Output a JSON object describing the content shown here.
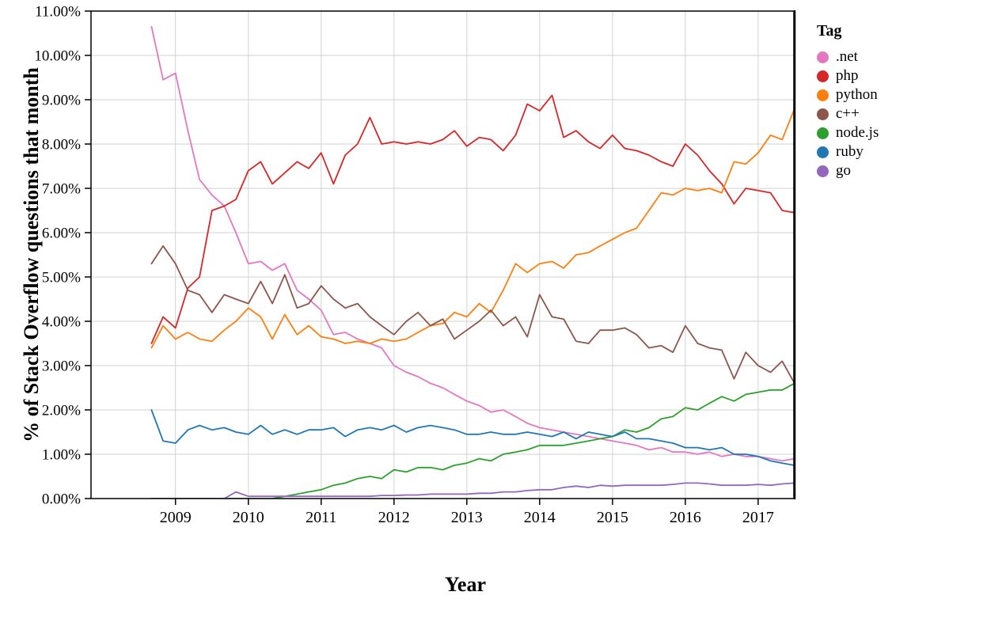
{
  "figure": {
    "y_axis_title": "% of Stack Overflow questions that month",
    "x_axis_title": "Year",
    "legend_title": "Tag"
  },
  "chart_data": {
    "type": "line",
    "title": "",
    "xlabel": "Year",
    "ylabel": "% of Stack Overflow questions that month",
    "legend_title": "Tag",
    "legend_position": "right",
    "grid": true,
    "grid_color": "#d2d2d2",
    "x_range": [
      2007.84,
      2017.49
    ],
    "y_range": [
      0,
      11
    ],
    "x_ticks": [
      2009,
      2010,
      2011,
      2012,
      2013,
      2014,
      2015,
      2016,
      2017
    ],
    "x_tick_labels": [
      "2009",
      "2010",
      "2011",
      "2012",
      "2013",
      "2014",
      "2015",
      "2016",
      "2017"
    ],
    "y_ticks": [
      0,
      1,
      2,
      3,
      4,
      5,
      6,
      7,
      8,
      9,
      10,
      11
    ],
    "y_tick_labels": [
      "0.00%",
      "1.00%",
      "2.00%",
      "3.00%",
      "4.00%",
      "5.00%",
      "6.00%",
      "7.00%",
      "8.00%",
      "9.00%",
      "10.00%",
      "11.00%"
    ],
    "x": [
      2008.67,
      2008.83,
      2009.0,
      2009.17,
      2009.33,
      2009.5,
      2009.67,
      2009.83,
      2010.0,
      2010.17,
      2010.33,
      2010.5,
      2010.67,
      2010.83,
      2011.0,
      2011.17,
      2011.33,
      2011.5,
      2011.67,
      2011.83,
      2012.0,
      2012.17,
      2012.33,
      2012.5,
      2012.67,
      2012.83,
      2013.0,
      2013.17,
      2013.33,
      2013.5,
      2013.67,
      2013.83,
      2014.0,
      2014.17,
      2014.33,
      2014.5,
      2014.67,
      2014.83,
      2015.0,
      2015.17,
      2015.33,
      2015.5,
      2015.67,
      2015.83,
      2016.0,
      2016.17,
      2016.33,
      2016.5,
      2016.67,
      2016.83,
      2017.0,
      2017.17,
      2017.33,
      2017.5
    ],
    "series": [
      {
        "name": ".net",
        "color": "#e377c2",
        "values": [
          10.65,
          9.45,
          9.6,
          8.3,
          7.2,
          6.85,
          6.6,
          6.0,
          5.3,
          5.35,
          5.15,
          5.3,
          4.7,
          4.5,
          4.25,
          3.7,
          3.75,
          3.6,
          3.5,
          3.4,
          3.0,
          2.85,
          2.75,
          2.6,
          2.5,
          2.35,
          2.2,
          2.1,
          1.95,
          2.0,
          1.85,
          1.7,
          1.6,
          1.55,
          1.5,
          1.45,
          1.4,
          1.35,
          1.3,
          1.25,
          1.2,
          1.1,
          1.15,
          1.05,
          1.05,
          1.0,
          1.05,
          0.95,
          1.0,
          0.95,
          0.95,
          0.9,
          0.85,
          0.9
        ]
      },
      {
        "name": "php",
        "color": "#d62728",
        "values": [
          3.5,
          4.1,
          3.85,
          4.75,
          5.0,
          6.5,
          6.6,
          6.75,
          7.4,
          7.6,
          7.1,
          7.35,
          7.6,
          7.45,
          7.8,
          7.1,
          7.75,
          8.0,
          8.6,
          8.0,
          8.05,
          8.0,
          8.05,
          8.0,
          8.1,
          8.3,
          7.95,
          8.15,
          8.1,
          7.85,
          8.2,
          8.9,
          8.75,
          9.1,
          8.15,
          8.3,
          8.05,
          7.9,
          8.2,
          7.9,
          7.85,
          7.75,
          7.6,
          7.5,
          8.0,
          7.75,
          7.4,
          7.1,
          6.65,
          7.0,
          6.95,
          6.9,
          6.5,
          6.45
        ]
      },
      {
        "name": "python",
        "color": "#ff7f0e",
        "values": [
          3.4,
          3.9,
          3.6,
          3.75,
          3.6,
          3.55,
          3.8,
          4.0,
          4.3,
          4.1,
          3.6,
          4.15,
          3.7,
          3.9,
          3.65,
          3.6,
          3.5,
          3.55,
          3.5,
          3.6,
          3.55,
          3.6,
          3.75,
          3.9,
          3.95,
          4.2,
          4.1,
          4.4,
          4.2,
          4.7,
          5.3,
          5.1,
          5.3,
          5.35,
          5.2,
          5.5,
          5.55,
          5.7,
          5.85,
          6.0,
          6.1,
          6.5,
          6.9,
          6.85,
          7.0,
          6.95,
          7.0,
          6.9,
          7.6,
          7.55,
          7.8,
          8.2,
          8.1,
          8.8
        ]
      },
      {
        "name": "c++",
        "color": "#8c564b",
        "values": [
          5.3,
          5.7,
          5.3,
          4.7,
          4.6,
          4.2,
          4.6,
          4.5,
          4.4,
          4.9,
          4.4,
          5.05,
          4.3,
          4.4,
          4.8,
          4.5,
          4.3,
          4.4,
          4.1,
          3.9,
          3.7,
          4.0,
          4.2,
          3.9,
          4.05,
          3.6,
          3.8,
          4.0,
          4.25,
          3.9,
          4.1,
          3.65,
          4.6,
          4.1,
          4.05,
          3.55,
          3.5,
          3.8,
          3.8,
          3.85,
          3.7,
          3.4,
          3.45,
          3.3,
          3.9,
          3.5,
          3.4,
          3.35,
          2.7,
          3.3,
          3.0,
          2.85,
          3.1,
          2.6
        ]
      },
      {
        "name": "node.js",
        "color": "#2ca02c",
        "values": [
          0,
          0,
          0,
          0,
          0,
          0,
          0,
          0,
          0,
          0,
          0,
          0.05,
          0.1,
          0.15,
          0.2,
          0.3,
          0.35,
          0.45,
          0.5,
          0.45,
          0.65,
          0.6,
          0.7,
          0.7,
          0.65,
          0.75,
          0.8,
          0.9,
          0.85,
          1.0,
          1.05,
          1.1,
          1.2,
          1.2,
          1.2,
          1.25,
          1.3,
          1.35,
          1.4,
          1.55,
          1.5,
          1.6,
          1.8,
          1.85,
          2.05,
          2.0,
          2.15,
          2.3,
          2.2,
          2.35,
          2.4,
          2.45,
          2.45,
          2.6
        ]
      },
      {
        "name": "ruby",
        "color": "#1f77b4",
        "values": [
          2.0,
          1.3,
          1.25,
          1.55,
          1.65,
          1.55,
          1.6,
          1.5,
          1.45,
          1.65,
          1.45,
          1.55,
          1.45,
          1.55,
          1.55,
          1.6,
          1.4,
          1.55,
          1.6,
          1.55,
          1.65,
          1.5,
          1.6,
          1.65,
          1.6,
          1.55,
          1.45,
          1.45,
          1.5,
          1.45,
          1.45,
          1.5,
          1.45,
          1.4,
          1.5,
          1.35,
          1.5,
          1.45,
          1.4,
          1.5,
          1.35,
          1.35,
          1.3,
          1.25,
          1.15,
          1.15,
          1.1,
          1.15,
          1.0,
          1.0,
          0.95,
          0.85,
          0.8,
          0.75
        ]
      },
      {
        "name": "go",
        "color": "#9467bd",
        "values": [
          0,
          0,
          0,
          0,
          0,
          0,
          0,
          0.15,
          0.05,
          0.05,
          0.05,
          0.05,
          0.05,
          0.05,
          0.05,
          0.05,
          0.05,
          0.05,
          0.05,
          0.07,
          0.07,
          0.08,
          0.08,
          0.1,
          0.1,
          0.1,
          0.1,
          0.12,
          0.12,
          0.15,
          0.15,
          0.18,
          0.2,
          0.2,
          0.25,
          0.28,
          0.25,
          0.3,
          0.28,
          0.3,
          0.3,
          0.3,
          0.3,
          0.32,
          0.35,
          0.35,
          0.33,
          0.3,
          0.3,
          0.3,
          0.32,
          0.3,
          0.33,
          0.35
        ]
      }
    ]
  }
}
